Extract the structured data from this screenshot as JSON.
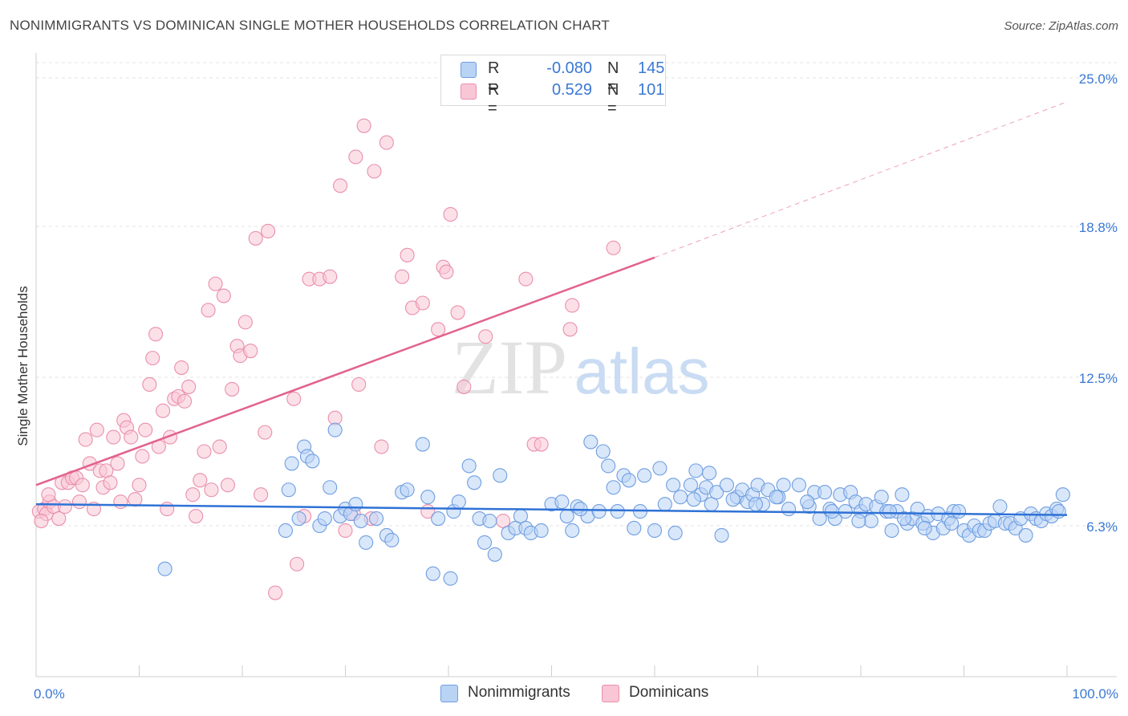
{
  "title": "NONIMMIGRANTS VS DOMINICAN SINGLE MOTHER HOUSEHOLDS CORRELATION CHART",
  "source": "Source: ZipAtlas.com",
  "colors": {
    "blue_fill": "#b9d3f5",
    "blue_stroke": "#6f9ee0",
    "blue_line": "#2f72d6",
    "pink_fill": "#f9c6d5",
    "pink_stroke": "#e98fae",
    "pink_line": "#e2628f",
    "value_text": "#3a78d4",
    "grid": "#e3e3e3"
  },
  "legend": {
    "rows": [
      {
        "series": "Nonimmigrants",
        "r_label": "R =",
        "r_value": "-0.080",
        "n_label": "N =",
        "n_value": "145"
      },
      {
        "series": "Dominicans",
        "r_label": "R =",
        "r_value": "0.529",
        "n_label": "N =",
        "n_value": "101"
      }
    ]
  },
  "watermark": {
    "zip": "ZIP",
    "atlas": "atlas"
  },
  "chart_data": {
    "type": "scatter",
    "title": "NONIMMIGRANTS VS DOMINICAN SINGLE MOTHER HOUSEHOLDS CORRELATION CHART",
    "xlabel": "",
    "ylabel": "Single Mother Households",
    "xlim": [
      0,
      100
    ],
    "ylim": [
      0,
      26
    ],
    "x_tick_labels": [
      "0.0%",
      "100.0%"
    ],
    "y_ticks": [
      6.3,
      12.5,
      18.8,
      25.0
    ],
    "y_tick_labels": [
      "6.3%",
      "12.5%",
      "18.8%",
      "25.0%"
    ],
    "grid": true,
    "series": [
      {
        "name": "Nonimmigrants",
        "r": -0.08,
        "n": 145,
        "trend": {
          "x": [
            0,
            100
          ],
          "y": [
            7.2,
            6.75
          ]
        },
        "points": [
          [
            12.5,
            4.5
          ],
          [
            24.5,
            7.8
          ],
          [
            24.2,
            6.1
          ],
          [
            24.8,
            8.9
          ],
          [
            25.5,
            6.6
          ],
          [
            26.0,
            9.6
          ],
          [
            26.3,
            9.2
          ],
          [
            26.8,
            9.0
          ],
          [
            27.5,
            6.3
          ],
          [
            28.0,
            6.6
          ],
          [
            28.5,
            7.9
          ],
          [
            29.0,
            10.3
          ],
          [
            29.5,
            6.7
          ],
          [
            30.0,
            7.0
          ],
          [
            30.5,
            6.8
          ],
          [
            31.0,
            7.2
          ],
          [
            31.5,
            6.5
          ],
          [
            32.0,
            5.6
          ],
          [
            33.0,
            6.6
          ],
          [
            34.0,
            5.9
          ],
          [
            34.5,
            5.7
          ],
          [
            35.5,
            7.7
          ],
          [
            36.0,
            7.8
          ],
          [
            37.5,
            9.7
          ],
          [
            38.0,
            7.5
          ],
          [
            38.5,
            4.3
          ],
          [
            39.0,
            6.6
          ],
          [
            40.2,
            4.1
          ],
          [
            40.5,
            6.9
          ],
          [
            41.0,
            7.3
          ],
          [
            42.0,
            8.8
          ],
          [
            42.5,
            8.1
          ],
          [
            43.0,
            6.6
          ],
          [
            43.5,
            5.6
          ],
          [
            44.0,
            6.5
          ],
          [
            44.5,
            5.1
          ],
          [
            45.0,
            8.4
          ],
          [
            45.8,
            6.0
          ],
          [
            46.5,
            6.2
          ],
          [
            47.0,
            6.7
          ],
          [
            47.5,
            6.2
          ],
          [
            48.0,
            6.0
          ],
          [
            49.0,
            6.1
          ],
          [
            50.0,
            7.2
          ],
          [
            51.0,
            7.3
          ],
          [
            51.5,
            6.7
          ],
          [
            52.0,
            6.1
          ],
          [
            52.5,
            7.1
          ],
          [
            53.5,
            6.7
          ],
          [
            53.8,
            9.8
          ],
          [
            55.0,
            9.4
          ],
          [
            55.5,
            8.8
          ],
          [
            56.0,
            7.9
          ],
          [
            57.0,
            8.4
          ],
          [
            57.5,
            8.2
          ],
          [
            58.0,
            6.2
          ],
          [
            59.0,
            8.4
          ],
          [
            60.0,
            6.1
          ],
          [
            60.5,
            8.7
          ],
          [
            61.0,
            7.2
          ],
          [
            62.0,
            6.0
          ],
          [
            62.5,
            7.5
          ],
          [
            63.5,
            8.0
          ],
          [
            64.0,
            8.6
          ],
          [
            64.5,
            7.6
          ],
          [
            65.0,
            7.9
          ],
          [
            65.5,
            7.2
          ],
          [
            66.0,
            7.7
          ],
          [
            66.5,
            5.9
          ],
          [
            67.0,
            8.0
          ],
          [
            68.0,
            7.5
          ],
          [
            68.5,
            7.8
          ],
          [
            69.0,
            7.3
          ],
          [
            69.5,
            7.6
          ],
          [
            70.0,
            8.0
          ],
          [
            70.5,
            7.2
          ],
          [
            71.0,
            7.8
          ],
          [
            72.0,
            7.5
          ],
          [
            72.5,
            8.0
          ],
          [
            73.0,
            7.0
          ],
          [
            74.0,
            8.0
          ],
          [
            75.0,
            7.1
          ],
          [
            75.5,
            7.7
          ],
          [
            76.0,
            6.6
          ],
          [
            76.5,
            7.7
          ],
          [
            77.0,
            7.0
          ],
          [
            77.5,
            6.6
          ],
          [
            78.0,
            7.6
          ],
          [
            78.5,
            6.9
          ],
          [
            79.0,
            7.7
          ],
          [
            79.5,
            7.3
          ],
          [
            80.0,
            6.9
          ],
          [
            80.5,
            7.2
          ],
          [
            81.0,
            6.5
          ],
          [
            81.5,
            7.1
          ],
          [
            82.0,
            7.5
          ],
          [
            82.5,
            6.9
          ],
          [
            83.0,
            6.1
          ],
          [
            83.5,
            6.9
          ],
          [
            84.0,
            7.6
          ],
          [
            84.5,
            6.4
          ],
          [
            85.0,
            6.6
          ],
          [
            85.5,
            7.0
          ],
          [
            86.0,
            6.4
          ],
          [
            86.5,
            6.7
          ],
          [
            87.0,
            6.0
          ],
          [
            87.5,
            6.8
          ],
          [
            88.0,
            6.2
          ],
          [
            88.5,
            6.6
          ],
          [
            89.0,
            6.9
          ],
          [
            89.5,
            6.9
          ],
          [
            90.0,
            6.1
          ],
          [
            90.5,
            5.9
          ],
          [
            91.0,
            6.3
          ],
          [
            91.5,
            6.1
          ],
          [
            92.0,
            6.1
          ],
          [
            92.5,
            6.4
          ],
          [
            93.0,
            6.5
          ],
          [
            93.5,
            7.1
          ],
          [
            94.0,
            6.4
          ],
          [
            94.5,
            6.4
          ],
          [
            95.0,
            6.2
          ],
          [
            95.5,
            6.6
          ],
          [
            96.0,
            5.9
          ],
          [
            96.5,
            6.8
          ],
          [
            97.0,
            6.6
          ],
          [
            97.5,
            6.5
          ],
          [
            98.0,
            6.8
          ],
          [
            98.5,
            6.7
          ],
          [
            99.0,
            7.0
          ],
          [
            99.2,
            6.9
          ],
          [
            99.6,
            7.6
          ],
          [
            88.8,
            6.4
          ],
          [
            86.2,
            6.2
          ],
          [
            84.2,
            6.6
          ],
          [
            82.8,
            6.9
          ],
          [
            79.8,
            6.5
          ],
          [
            77.2,
            6.9
          ],
          [
            74.8,
            7.3
          ],
          [
            71.8,
            7.5
          ],
          [
            69.8,
            7.2
          ],
          [
            67.6,
            7.4
          ],
          [
            65.3,
            8.5
          ],
          [
            63.8,
            7.4
          ],
          [
            61.8,
            8.0
          ],
          [
            58.6,
            6.9
          ],
          [
            56.4,
            6.9
          ],
          [
            54.6,
            6.9
          ],
          [
            52.8,
            7.0
          ]
        ]
      },
      {
        "name": "Dominicans",
        "r": 0.529,
        "n": 101,
        "trend": {
          "x": [
            0,
            60
          ],
          "y": [
            8.0,
            17.5
          ]
        },
        "trend_extension": {
          "x": [
            60,
            100
          ],
          "y": [
            17.5,
            24.0
          ]
        },
        "points": [
          [
            0.3,
            6.9
          ],
          [
            0.8,
            7.0
          ],
          [
            1.0,
            6.8
          ],
          [
            1.3,
            7.3
          ],
          [
            1.7,
            7.1
          ],
          [
            2.2,
            6.6
          ],
          [
            2.5,
            8.1
          ],
          [
            2.8,
            7.1
          ],
          [
            3.1,
            8.1
          ],
          [
            3.5,
            8.3
          ],
          [
            3.9,
            8.3
          ],
          [
            4.2,
            7.3
          ],
          [
            4.5,
            8.0
          ],
          [
            4.8,
            9.9
          ],
          [
            5.2,
            8.9
          ],
          [
            5.6,
            7.0
          ],
          [
            5.9,
            10.3
          ],
          [
            6.2,
            8.6
          ],
          [
            6.5,
            7.9
          ],
          [
            6.8,
            8.6
          ],
          [
            7.2,
            8.1
          ],
          [
            7.5,
            10.0
          ],
          [
            7.9,
            8.9
          ],
          [
            8.2,
            7.3
          ],
          [
            8.5,
            10.7
          ],
          [
            8.8,
            10.4
          ],
          [
            9.2,
            10.0
          ],
          [
            9.6,
            7.4
          ],
          [
            10.0,
            8.0
          ],
          [
            10.3,
            9.2
          ],
          [
            10.6,
            10.3
          ],
          [
            11.0,
            12.2
          ],
          [
            11.3,
            13.3
          ],
          [
            11.6,
            14.3
          ],
          [
            11.9,
            9.6
          ],
          [
            12.3,
            11.1
          ],
          [
            12.7,
            7.0
          ],
          [
            13.0,
            10.0
          ],
          [
            13.4,
            11.6
          ],
          [
            13.8,
            11.7
          ],
          [
            14.1,
            12.9
          ],
          [
            14.4,
            11.5
          ],
          [
            14.8,
            12.1
          ],
          [
            15.2,
            7.6
          ],
          [
            15.5,
            6.7
          ],
          [
            15.9,
            8.2
          ],
          [
            16.3,
            9.4
          ],
          [
            16.7,
            15.3
          ],
          [
            17.0,
            7.8
          ],
          [
            17.4,
            16.4
          ],
          [
            17.8,
            9.6
          ],
          [
            18.2,
            15.9
          ],
          [
            18.6,
            8.0
          ],
          [
            19.0,
            12.0
          ],
          [
            19.5,
            13.8
          ],
          [
            19.8,
            13.4
          ],
          [
            20.3,
            14.8
          ],
          [
            20.8,
            13.6
          ],
          [
            21.3,
            18.3
          ],
          [
            21.8,
            7.6
          ],
          [
            22.2,
            10.2
          ],
          [
            22.5,
            18.6
          ],
          [
            23.2,
            3.5
          ],
          [
            25.0,
            11.6
          ],
          [
            25.3,
            4.7
          ],
          [
            26.0,
            6.7
          ],
          [
            26.5,
            16.6
          ],
          [
            27.5,
            16.6
          ],
          [
            28.5,
            16.7
          ],
          [
            29.0,
            10.8
          ],
          [
            29.5,
            20.5
          ],
          [
            30.0,
            6.1
          ],
          [
            30.8,
            6.8
          ],
          [
            31.0,
            21.7
          ],
          [
            31.3,
            12.2
          ],
          [
            31.8,
            23.0
          ],
          [
            32.5,
            6.6
          ],
          [
            32.8,
            21.1
          ],
          [
            33.5,
            9.6
          ],
          [
            34.0,
            22.3
          ],
          [
            35.5,
            16.7
          ],
          [
            36.0,
            17.6
          ],
          [
            36.5,
            15.4
          ],
          [
            37.5,
            15.6
          ],
          [
            38.0,
            6.9
          ],
          [
            39.0,
            14.5
          ],
          [
            39.5,
            17.1
          ],
          [
            39.8,
            16.9
          ],
          [
            40.2,
            19.3
          ],
          [
            40.9,
            15.2
          ],
          [
            41.5,
            12.1
          ],
          [
            43.6,
            14.2
          ],
          [
            45.3,
            6.5
          ],
          [
            47.5,
            16.6
          ],
          [
            48.3,
            9.7
          ],
          [
            49.0,
            9.7
          ],
          [
            51.8,
            14.5
          ],
          [
            52.0,
            15.5
          ],
          [
            56.0,
            17.9
          ],
          [
            0.5,
            6.5
          ],
          [
            1.2,
            7.6
          ]
        ]
      }
    ]
  }
}
